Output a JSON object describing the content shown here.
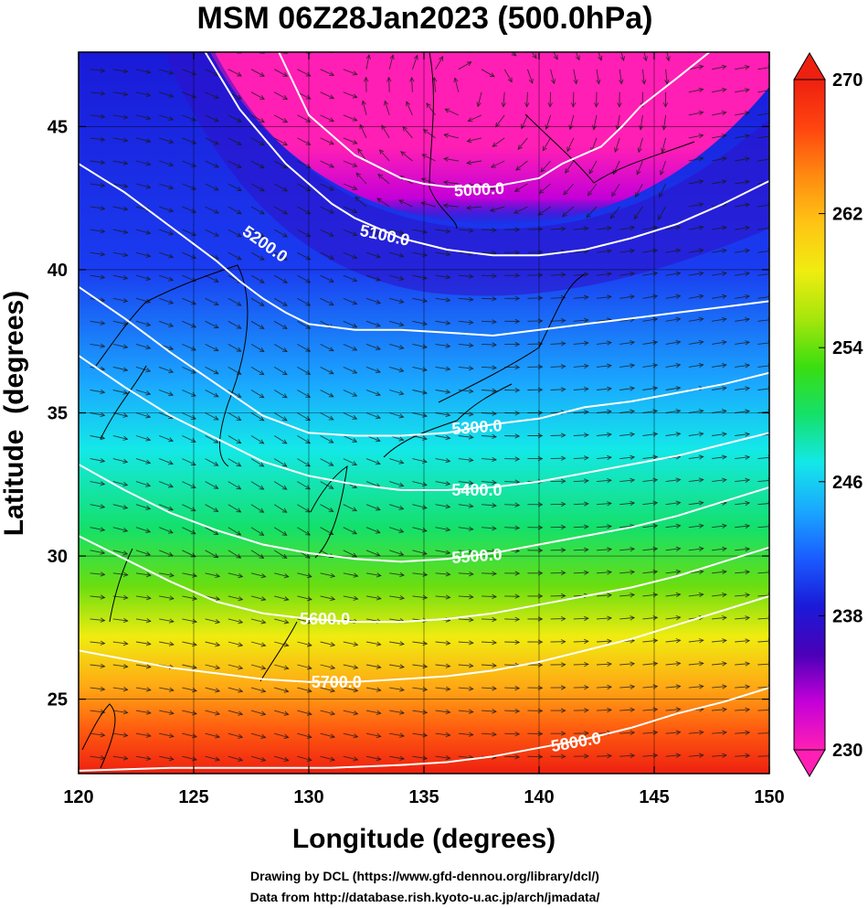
{
  "chart_data": {
    "type": "heatmap",
    "title": "MSM 06Z28Jan2023 (500.0hPa)",
    "xlabel": "Longitude (degrees)",
    "ylabel": "Latitude  (degrees)",
    "xlim": [
      120,
      150
    ],
    "ylim": [
      22.4,
      47.6
    ],
    "x_ticks": [
      120,
      125,
      130,
      135,
      140,
      145,
      150
    ],
    "x_tick_labels": [
      "120",
      "125",
      "130",
      "135",
      "140",
      "145",
      "150"
    ],
    "y_ticks": [
      25,
      30,
      35,
      40,
      45
    ],
    "y_tick_labels": [
      "25",
      "30",
      "35",
      "40",
      "45"
    ],
    "grid": true,
    "colorbar": {
      "min": 230,
      "max": 270,
      "ticks": [
        230,
        238,
        246,
        254,
        262,
        270
      ],
      "tick_labels": [
        "230",
        "238",
        "246",
        "254",
        "262",
        "270"
      ],
      "colors": [
        "#ff1fb4",
        "#c400d8",
        "#4a00b8",
        "#1a1ad8",
        "#1a5cff",
        "#1aa8ff",
        "#14e8e8",
        "#14e06a",
        "#3ade10",
        "#a6e60c",
        "#f0ec10",
        "#ffc414",
        "#ff8a10",
        "#ff4410",
        "#ee2010"
      ],
      "position": "right"
    },
    "series": [
      {
        "name": "5000.0",
        "x": [
          128.7,
          130,
          132,
          134,
          135,
          136,
          138,
          140,
          141,
          142.7,
          143.6,
          144.4,
          146,
          147.4
        ],
        "y": [
          47.6,
          45.4,
          44,
          43.2,
          43,
          42.9,
          42.9,
          43.2,
          43.7,
          44.3,
          45,
          45.7,
          46.7,
          47.6
        ]
      },
      {
        "name": "5100.0",
        "x": [
          125.5,
          127,
          129,
          131,
          132,
          134,
          136,
          138,
          140,
          142,
          144,
          146,
          148,
          150
        ],
        "y": [
          47.6,
          45.6,
          43.7,
          42.3,
          41.8,
          41.1,
          40.7,
          40.5,
          40.5,
          40.7,
          41.1,
          41.6,
          42.3,
          43.1
        ]
      },
      {
        "name": "5200.0",
        "x": [
          120,
          121,
          122,
          123,
          124,
          125,
          126,
          127,
          128,
          129,
          130,
          132,
          134,
          136,
          138,
          140,
          142,
          144,
          146,
          148,
          150
        ],
        "y": [
          43.7,
          43.2,
          42.7,
          42.1,
          41.5,
          40.9,
          40.3,
          39.6,
          39,
          38.5,
          38.1,
          37.9,
          37.9,
          37.8,
          37.7,
          37.9,
          38.1,
          38.3,
          38.5,
          38.7,
          38.9
        ]
      },
      {
        "name": "5300.0",
        "x": [
          120,
          122,
          124,
          126,
          128,
          130,
          132,
          134,
          136,
          138,
          140,
          142,
          144,
          146,
          148,
          150
        ],
        "y": [
          39.4,
          38.3,
          37.1,
          36,
          34.9,
          34.3,
          34.2,
          34.2,
          34.3,
          34.6,
          34.8,
          35.2,
          35.4,
          35.7,
          36,
          36.4
        ]
      },
      {
        "name": "5400.0",
        "x": [
          120,
          122,
          124,
          126,
          128,
          130,
          132,
          134,
          136,
          138,
          140,
          142,
          144,
          146,
          148,
          150
        ],
        "y": [
          37,
          35.9,
          34.9,
          34.1,
          33.3,
          32.8,
          32.5,
          32.3,
          32.3,
          32.4,
          32.6,
          32.9,
          33.2,
          33.5,
          33.9,
          34.3
        ]
      },
      {
        "name": "5500.0",
        "x": [
          120,
          122,
          124,
          126,
          128,
          130,
          132,
          134,
          136,
          138,
          140,
          142,
          144,
          146,
          148,
          150
        ],
        "y": [
          33.2,
          32.3,
          31.5,
          30.9,
          30.4,
          30.1,
          29.9,
          29.8,
          29.9,
          30.1,
          30.4,
          30.7,
          31,
          31.4,
          31.9,
          32.4
        ]
      },
      {
        "name": "5600.0",
        "x": [
          120,
          122,
          124,
          126,
          128,
          130,
          132,
          134,
          136,
          138,
          140,
          142,
          144,
          146,
          148,
          150
        ],
        "y": [
          30.7,
          29.9,
          29.1,
          28.4,
          28,
          27.8,
          27.7,
          27.7,
          27.8,
          28,
          28.3,
          28.6,
          28.9,
          29.3,
          29.8,
          30.3
        ]
      },
      {
        "name": "5700.0",
        "x": [
          120,
          122,
          124,
          126,
          128,
          130,
          132,
          134,
          136,
          138,
          140,
          142,
          144,
          146,
          148,
          150
        ],
        "y": [
          26.7,
          26.4,
          26.1,
          25.9,
          25.7,
          25.6,
          25.6,
          25.7,
          25.8,
          26,
          26.3,
          26.7,
          27.1,
          27.6,
          28.1,
          28.6
        ]
      },
      {
        "name": "5800.0",
        "x": [
          120,
          124,
          128,
          131,
          134,
          136,
          138,
          140,
          142,
          144,
          146,
          148,
          150
        ],
        "y": [
          22.5,
          22.6,
          22.6,
          22.6,
          22.7,
          22.8,
          23,
          23.3,
          23.6,
          24,
          24.5,
          24.9,
          25.4
        ]
      }
    ],
    "contour_labels": [
      {
        "text": "5000.0",
        "x": 137.4,
        "y": 42.8,
        "angle": -3
      },
      {
        "text": "5100.0",
        "x": 133.3,
        "y": 41.2,
        "angle": 12
      },
      {
        "text": "5200.0",
        "x": 128.1,
        "y": 40.9,
        "angle": 35
      },
      {
        "text": "5300.0",
        "x": 137.3,
        "y": 34.5,
        "angle": -4
      },
      {
        "text": "5400.0",
        "x": 137.3,
        "y": 32.3,
        "angle": 0
      },
      {
        "text": "5500.0",
        "x": 137.3,
        "y": 30.0,
        "angle": -4
      },
      {
        "text": "5600.0",
        "x": 130.7,
        "y": 27.8,
        "angle": 0
      },
      {
        "text": "5700.0",
        "x": 131.2,
        "y": 25.6,
        "angle": 0
      },
      {
        "text": "5800.0",
        "x": 141.6,
        "y": 23.5,
        "angle": -10
      }
    ]
  },
  "credits": {
    "line1": "Drawing by DCL (https://www.gfd-dennou.org/library/dcl/)",
    "line2": "Data from http://database.rish.kyoto-u.ac.jp/arch/jmadata/"
  }
}
